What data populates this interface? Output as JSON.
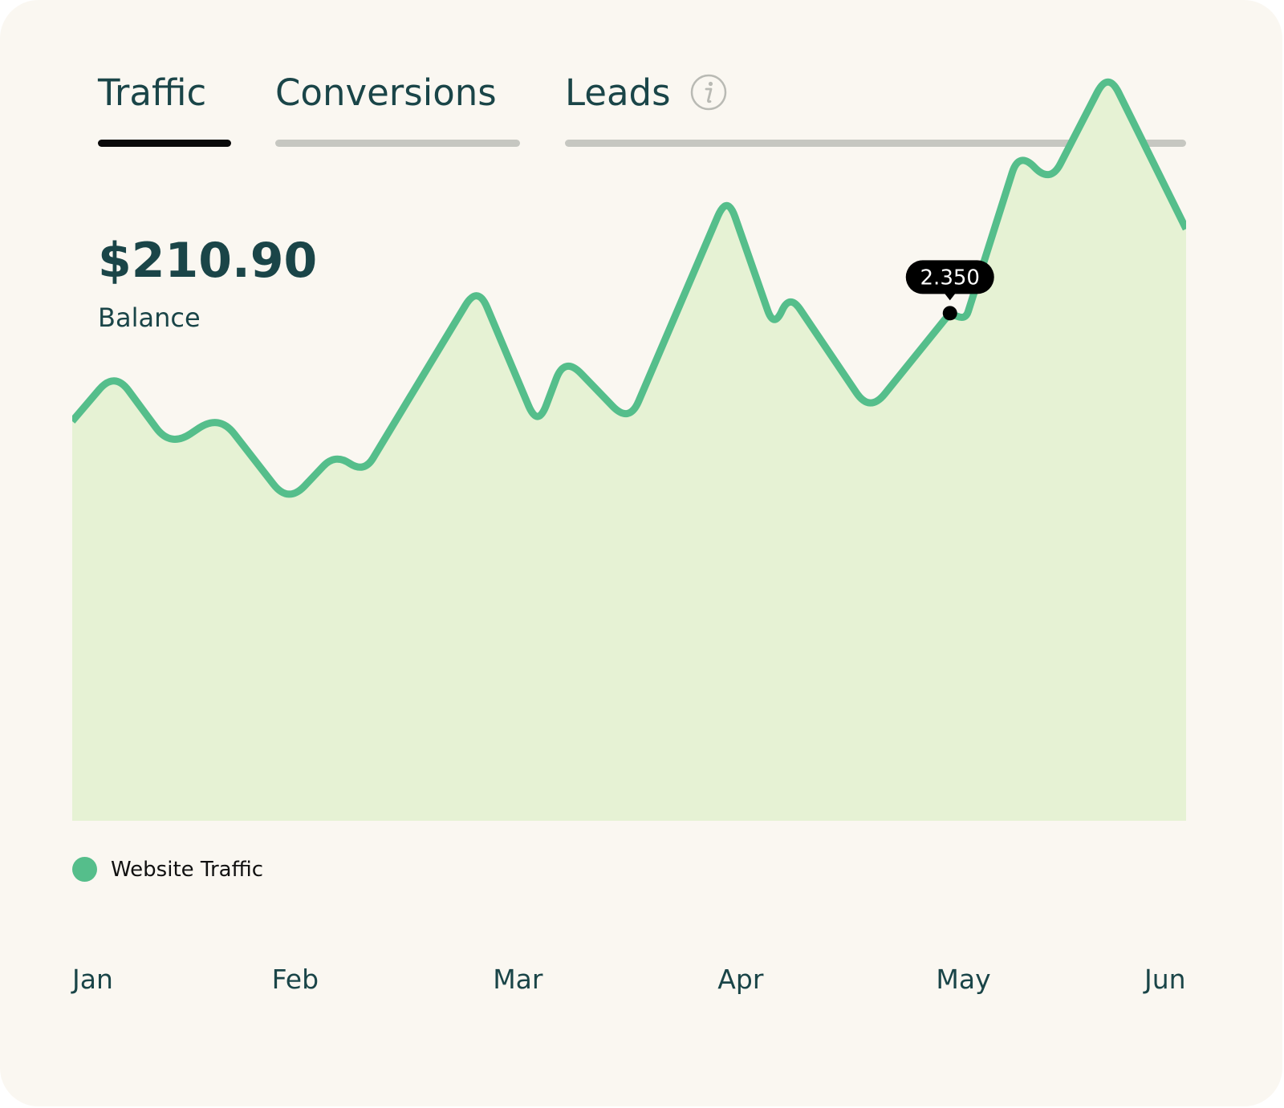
{
  "tabs": [
    {
      "label": "Traffic",
      "active": true
    },
    {
      "label": "Conversions",
      "active": false
    },
    {
      "label": "Leads",
      "active": false,
      "icon": "info-icon"
    }
  ],
  "balance": {
    "value": "$210.90",
    "label": "Balance"
  },
  "colors": {
    "line": "#55be8b",
    "fill": "#e6f2d4",
    "text": "#1a4548",
    "tooltip": "#000000"
  },
  "chart_data": {
    "type": "area",
    "x_labels": [
      "Jan",
      "Feb",
      "Mar",
      "Apr",
      "May",
      "Jun"
    ],
    "series": [
      {
        "name": "Website Traffic",
        "points": [
          [
            0,
            1.85
          ],
          [
            0.19,
            2.08
          ],
          [
            0.44,
            1.73
          ],
          [
            0.66,
            1.88
          ],
          [
            0.97,
            1.47
          ],
          [
            1.18,
            1.7
          ],
          [
            1.31,
            1.61
          ],
          [
            1.82,
            2.48
          ],
          [
            2.09,
            1.82
          ],
          [
            2.21,
            2.15
          ],
          [
            2.5,
            1.84
          ],
          [
            2.94,
            2.9
          ],
          [
            3.15,
            2.28
          ],
          [
            3.22,
            2.44
          ],
          [
            3.58,
            1.89
          ],
          [
            3.94,
            2.35
          ],
          [
            4.01,
            2.32
          ],
          [
            4.25,
            3.1
          ],
          [
            4.39,
            2.95
          ],
          [
            4.65,
            3.47
          ],
          [
            5.0,
            2.74
          ]
        ]
      }
    ],
    "tooltip": {
      "label": "2.350",
      "point_index": 15
    },
    "legend": {
      "label": "Website Traffic",
      "position": "bottom-left"
    },
    "ylim": [
      0,
      3.8
    ]
  }
}
